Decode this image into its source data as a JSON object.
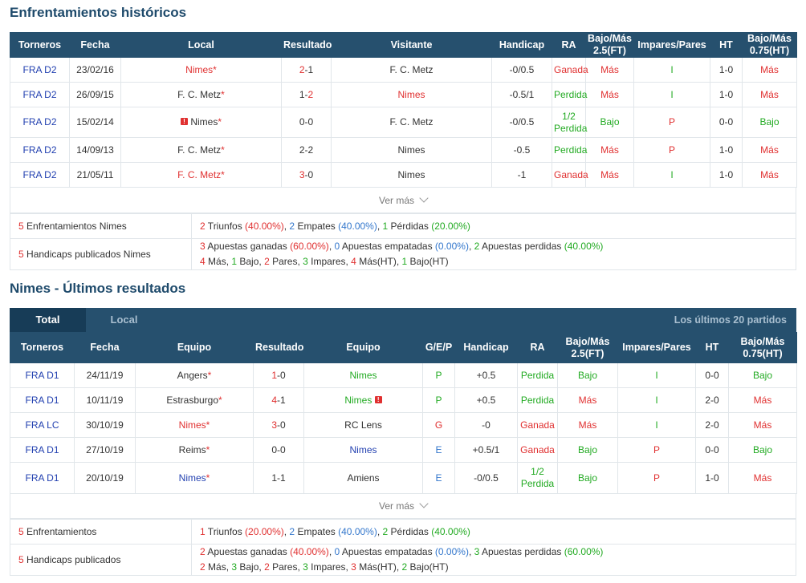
{
  "h2h": {
    "title": "Enfrentamientos históricos",
    "headers": [
      "Torneros",
      "Fecha",
      "Local",
      "Resultado",
      "Visitante",
      "Handicap",
      "RA",
      "Bajo/Más 2.5(FT)",
      "Impares/Pares",
      "HT",
      "Bajo/Más 0.75(HT)"
    ],
    "rows": [
      {
        "league": "FRA D2",
        "date": "23/02/16",
        "home": "Nimes",
        "home_color": "red",
        "home_star": "*",
        "home_flag": false,
        "sh": "2",
        "sh_color": "red",
        "sep": "-",
        "sa": "1",
        "sa_color": "dark",
        "away": "F. C. Metz",
        "away_color": "dark",
        "away_star": "",
        "handicap": "-0/0.5",
        "ra": "Ganada",
        "ra_color": "red",
        "ou": "Más",
        "ou_color": "red",
        "oe": "I",
        "oe_color": "green",
        "ht": "1-0",
        "ht_ou": "Más",
        "ht_ou_color": "red"
      },
      {
        "league": "FRA D2",
        "date": "26/09/15",
        "home": "F. C. Metz",
        "home_color": "dark",
        "home_star": "*",
        "home_flag": false,
        "sh": "1",
        "sh_color": "dark",
        "sep": "-",
        "sa": "2",
        "sa_color": "red",
        "away": "Nimes",
        "away_color": "red",
        "away_star": "",
        "handicap": "-0.5/1",
        "ra": "Perdida",
        "ra_color": "green",
        "ou": "Más",
        "ou_color": "red",
        "oe": "I",
        "oe_color": "green",
        "ht": "1-0",
        "ht_ou": "Más",
        "ht_ou_color": "red"
      },
      {
        "league": "FRA D2",
        "date": "15/02/14",
        "home": "Nimes",
        "home_color": "dark",
        "home_star": "*",
        "home_flag": true,
        "sh": "0",
        "sh_color": "dark",
        "sep": "-",
        "sa": "0",
        "sa_color": "dark",
        "away": "F. C. Metz",
        "away_color": "dark",
        "away_star": "",
        "handicap": "-0/0.5",
        "ra": "1/2 Perdida",
        "ra_line1": "1/2",
        "ra_line2": "Perdida",
        "ra_color": "green",
        "ou": "Bajo",
        "ou_color": "green",
        "oe": "P",
        "oe_color": "red",
        "ht": "0-0",
        "ht_ou": "Bajo",
        "ht_ou_color": "green"
      },
      {
        "league": "FRA D2",
        "date": "14/09/13",
        "home": "F. C. Metz",
        "home_color": "dark",
        "home_star": "*",
        "home_flag": false,
        "sh": "2",
        "sh_color": "dark",
        "sep": "-",
        "sa": "2",
        "sa_color": "dark",
        "away": "Nimes",
        "away_color": "dark",
        "away_star": "",
        "handicap": "-0.5",
        "ra": "Perdida",
        "ra_color": "green",
        "ou": "Más",
        "ou_color": "red",
        "oe": "P",
        "oe_color": "red",
        "ht": "1-0",
        "ht_ou": "Más",
        "ht_ou_color": "red"
      },
      {
        "league": "FRA D2",
        "date": "21/05/11",
        "home": "F. C. Metz",
        "home_color": "red",
        "home_star": "*",
        "home_flag": false,
        "sh": "3",
        "sh_color": "red",
        "sep": "-",
        "sa": "0",
        "sa_color": "dark",
        "away": "Nimes",
        "away_color": "dark",
        "away_star": "",
        "handicap": "-1",
        "ra": "Ganada",
        "ra_color": "red",
        "ou": "Más",
        "ou_color": "red",
        "oe": "I",
        "oe_color": "green",
        "ht": "1-0",
        "ht_ou": "Más",
        "ht_ou_color": "red"
      }
    ],
    "more_label": "Ver más",
    "summary": [
      {
        "count": "5",
        "label": "Enfrentamientos Nimes",
        "line1": [
          [
            "2",
            "red"
          ],
          [
            " Triunfos ",
            "dark"
          ],
          [
            "(40.00%)",
            "red"
          ],
          [
            ", ",
            "dark"
          ],
          [
            "2",
            "lblue"
          ],
          [
            " Empates ",
            "dark"
          ],
          [
            "(40.00%)",
            "lblue"
          ],
          [
            ", ",
            "dark"
          ],
          [
            "1",
            "green"
          ],
          [
            " Pérdidas ",
            "dark"
          ],
          [
            "(20.00%)",
            "green"
          ]
        ],
        "line2": []
      },
      {
        "count": "5",
        "label": "Handicaps publicados Nimes",
        "line1": [
          [
            "3",
            "red"
          ],
          [
            " Apuestas ganadas ",
            "dark"
          ],
          [
            "(60.00%)",
            "red"
          ],
          [
            ", ",
            "dark"
          ],
          [
            "0",
            "lblue"
          ],
          [
            " Apuestas empatadas ",
            "dark"
          ],
          [
            "(0.00%)",
            "lblue"
          ],
          [
            ", ",
            "dark"
          ],
          [
            "2",
            "green"
          ],
          [
            " Apuestas perdidas ",
            "dark"
          ],
          [
            "(40.00%)",
            "green"
          ]
        ],
        "line2": [
          [
            "4",
            "red"
          ],
          [
            " Más, ",
            "dark"
          ],
          [
            "1",
            "green"
          ],
          [
            " Bajo, ",
            "dark"
          ],
          [
            "2",
            "red"
          ],
          [
            " Pares, ",
            "dark"
          ],
          [
            "3",
            "green"
          ],
          [
            " Impares, ",
            "dark"
          ],
          [
            "4",
            "red"
          ],
          [
            " Más(HT), ",
            "dark"
          ],
          [
            "1",
            "green"
          ],
          [
            " Bajo(HT)",
            "dark"
          ]
        ]
      }
    ]
  },
  "recent": {
    "title": "Nimes - Últimos resultados",
    "tabs": {
      "total": "Total",
      "local": "Local",
      "right": "Los últimos 20 partidos"
    },
    "headers": [
      "Torneros",
      "Fecha",
      "Equipo",
      "Resultado",
      "Equipo",
      "G/E/P",
      "Handicap",
      "RA",
      "Bajo/Más 2.5(FT)",
      "Impares/Pares",
      "HT",
      "Bajo/Más 0.75(HT)"
    ],
    "rows": [
      {
        "league": "FRA D1",
        "date": "24/11/19",
        "home": "Angers",
        "home_color": "dark",
        "home_star": "*",
        "sh": "1",
        "sh_color": "red",
        "sep": "-",
        "sa": "0",
        "sa_color": "dark",
        "away": "Nimes",
        "away_color": "green",
        "away_flag": false,
        "gep": "P",
        "gep_color": "green",
        "handicap": "+0.5",
        "ra": "Perdida",
        "ra_color": "green",
        "ou": "Bajo",
        "ou_color": "green",
        "oe": "I",
        "oe_color": "green",
        "ht": "0-0",
        "ht_ou": "Bajo",
        "ht_ou_color": "green"
      },
      {
        "league": "FRA D1",
        "date": "10/11/19",
        "home": "Estrasburgo",
        "home_color": "dark",
        "home_star": "*",
        "sh": "4",
        "sh_color": "red",
        "sep": "-",
        "sa": "1",
        "sa_color": "dark",
        "away": "Nimes",
        "away_color": "green",
        "away_flag": true,
        "gep": "P",
        "gep_color": "green",
        "handicap": "+0.5",
        "ra": "Perdida",
        "ra_color": "green",
        "ou": "Más",
        "ou_color": "red",
        "oe": "I",
        "oe_color": "green",
        "ht": "2-0",
        "ht_ou": "Más",
        "ht_ou_color": "red"
      },
      {
        "league": "FRA LC",
        "date": "30/10/19",
        "home": "Nimes",
        "home_color": "red",
        "home_star": "*",
        "sh": "3",
        "sh_color": "red",
        "sep": "-",
        "sa": "0",
        "sa_color": "dark",
        "away": "RC Lens",
        "away_color": "dark",
        "away_flag": false,
        "gep": "G",
        "gep_color": "red",
        "handicap": "-0",
        "ra": "Ganada",
        "ra_color": "red",
        "ou": "Más",
        "ou_color": "red",
        "oe": "I",
        "oe_color": "green",
        "ht": "2-0",
        "ht_ou": "Más",
        "ht_ou_color": "red"
      },
      {
        "league": "FRA D1",
        "date": "27/10/19",
        "home": "Reims",
        "home_color": "dark",
        "home_star": "*",
        "sh": "0",
        "sh_color": "dark",
        "sep": "-",
        "sa": "0",
        "sa_color": "dark",
        "away": "Nimes",
        "away_color": "blue",
        "away_flag": false,
        "gep": "E",
        "gep_color": "lblue",
        "handicap": "+0.5/1",
        "ra": "Ganada",
        "ra_color": "red",
        "ou": "Bajo",
        "ou_color": "green",
        "oe": "P",
        "oe_color": "red",
        "ht": "0-0",
        "ht_ou": "Bajo",
        "ht_ou_color": "green"
      },
      {
        "league": "FRA D1",
        "date": "20/10/19",
        "home": "Nimes",
        "home_color": "blue",
        "home_star": "*",
        "sh": "1",
        "sh_color": "dark",
        "sep": "-",
        "sa": "1",
        "sa_color": "dark",
        "away": "Amiens",
        "away_color": "dark",
        "away_flag": false,
        "gep": "E",
        "gep_color": "lblue",
        "handicap": "-0/0.5",
        "ra": "1/2 Perdida",
        "ra_line1": "1/2",
        "ra_line2": "Perdida",
        "ra_color": "green",
        "ou": "Bajo",
        "ou_color": "green",
        "oe": "P",
        "oe_color": "red",
        "ht": "1-0",
        "ht_ou": "Más",
        "ht_ou_color": "red"
      }
    ],
    "more_label": "Ver más",
    "summary": [
      {
        "count": "5",
        "label": "Enfrentamientos",
        "line1": [
          [
            "1",
            "red"
          ],
          [
            " Triunfos ",
            "dark"
          ],
          [
            "(20.00%)",
            "red"
          ],
          [
            ", ",
            "dark"
          ],
          [
            "2",
            "lblue"
          ],
          [
            " Empates ",
            "dark"
          ],
          [
            "(40.00%)",
            "lblue"
          ],
          [
            ", ",
            "dark"
          ],
          [
            "2",
            "green"
          ],
          [
            " Pérdidas ",
            "dark"
          ],
          [
            "(40.00%)",
            "green"
          ]
        ],
        "line2": []
      },
      {
        "count": "5",
        "label": "Handicaps publicados",
        "line1": [
          [
            "2",
            "red"
          ],
          [
            " Apuestas ganadas ",
            "dark"
          ],
          [
            "(40.00%)",
            "red"
          ],
          [
            ", ",
            "dark"
          ],
          [
            "0",
            "lblue"
          ],
          [
            " Apuestas empatadas ",
            "dark"
          ],
          [
            "(0.00%)",
            "lblue"
          ],
          [
            ", ",
            "dark"
          ],
          [
            "3",
            "green"
          ],
          [
            " Apuestas perdidas ",
            "dark"
          ],
          [
            "(60.00%)",
            "green"
          ]
        ],
        "line2": [
          [
            "2",
            "red"
          ],
          [
            " Más, ",
            "dark"
          ],
          [
            "3",
            "green"
          ],
          [
            " Bajo, ",
            "dark"
          ],
          [
            "2",
            "red"
          ],
          [
            " Pares, ",
            "dark"
          ],
          [
            "3",
            "green"
          ],
          [
            " Impares, ",
            "dark"
          ],
          [
            "3",
            "red"
          ],
          [
            " Más(HT), ",
            "dark"
          ],
          [
            "2",
            "green"
          ],
          [
            " Bajo(HT)",
            "dark"
          ]
        ]
      }
    ]
  },
  "colors": {
    "header_bg": "#26506e",
    "title": "#1e4a6b",
    "red": "#e03030",
    "green": "#22aa22",
    "blue": "#2240b0",
    "light_blue": "#3377cc"
  }
}
